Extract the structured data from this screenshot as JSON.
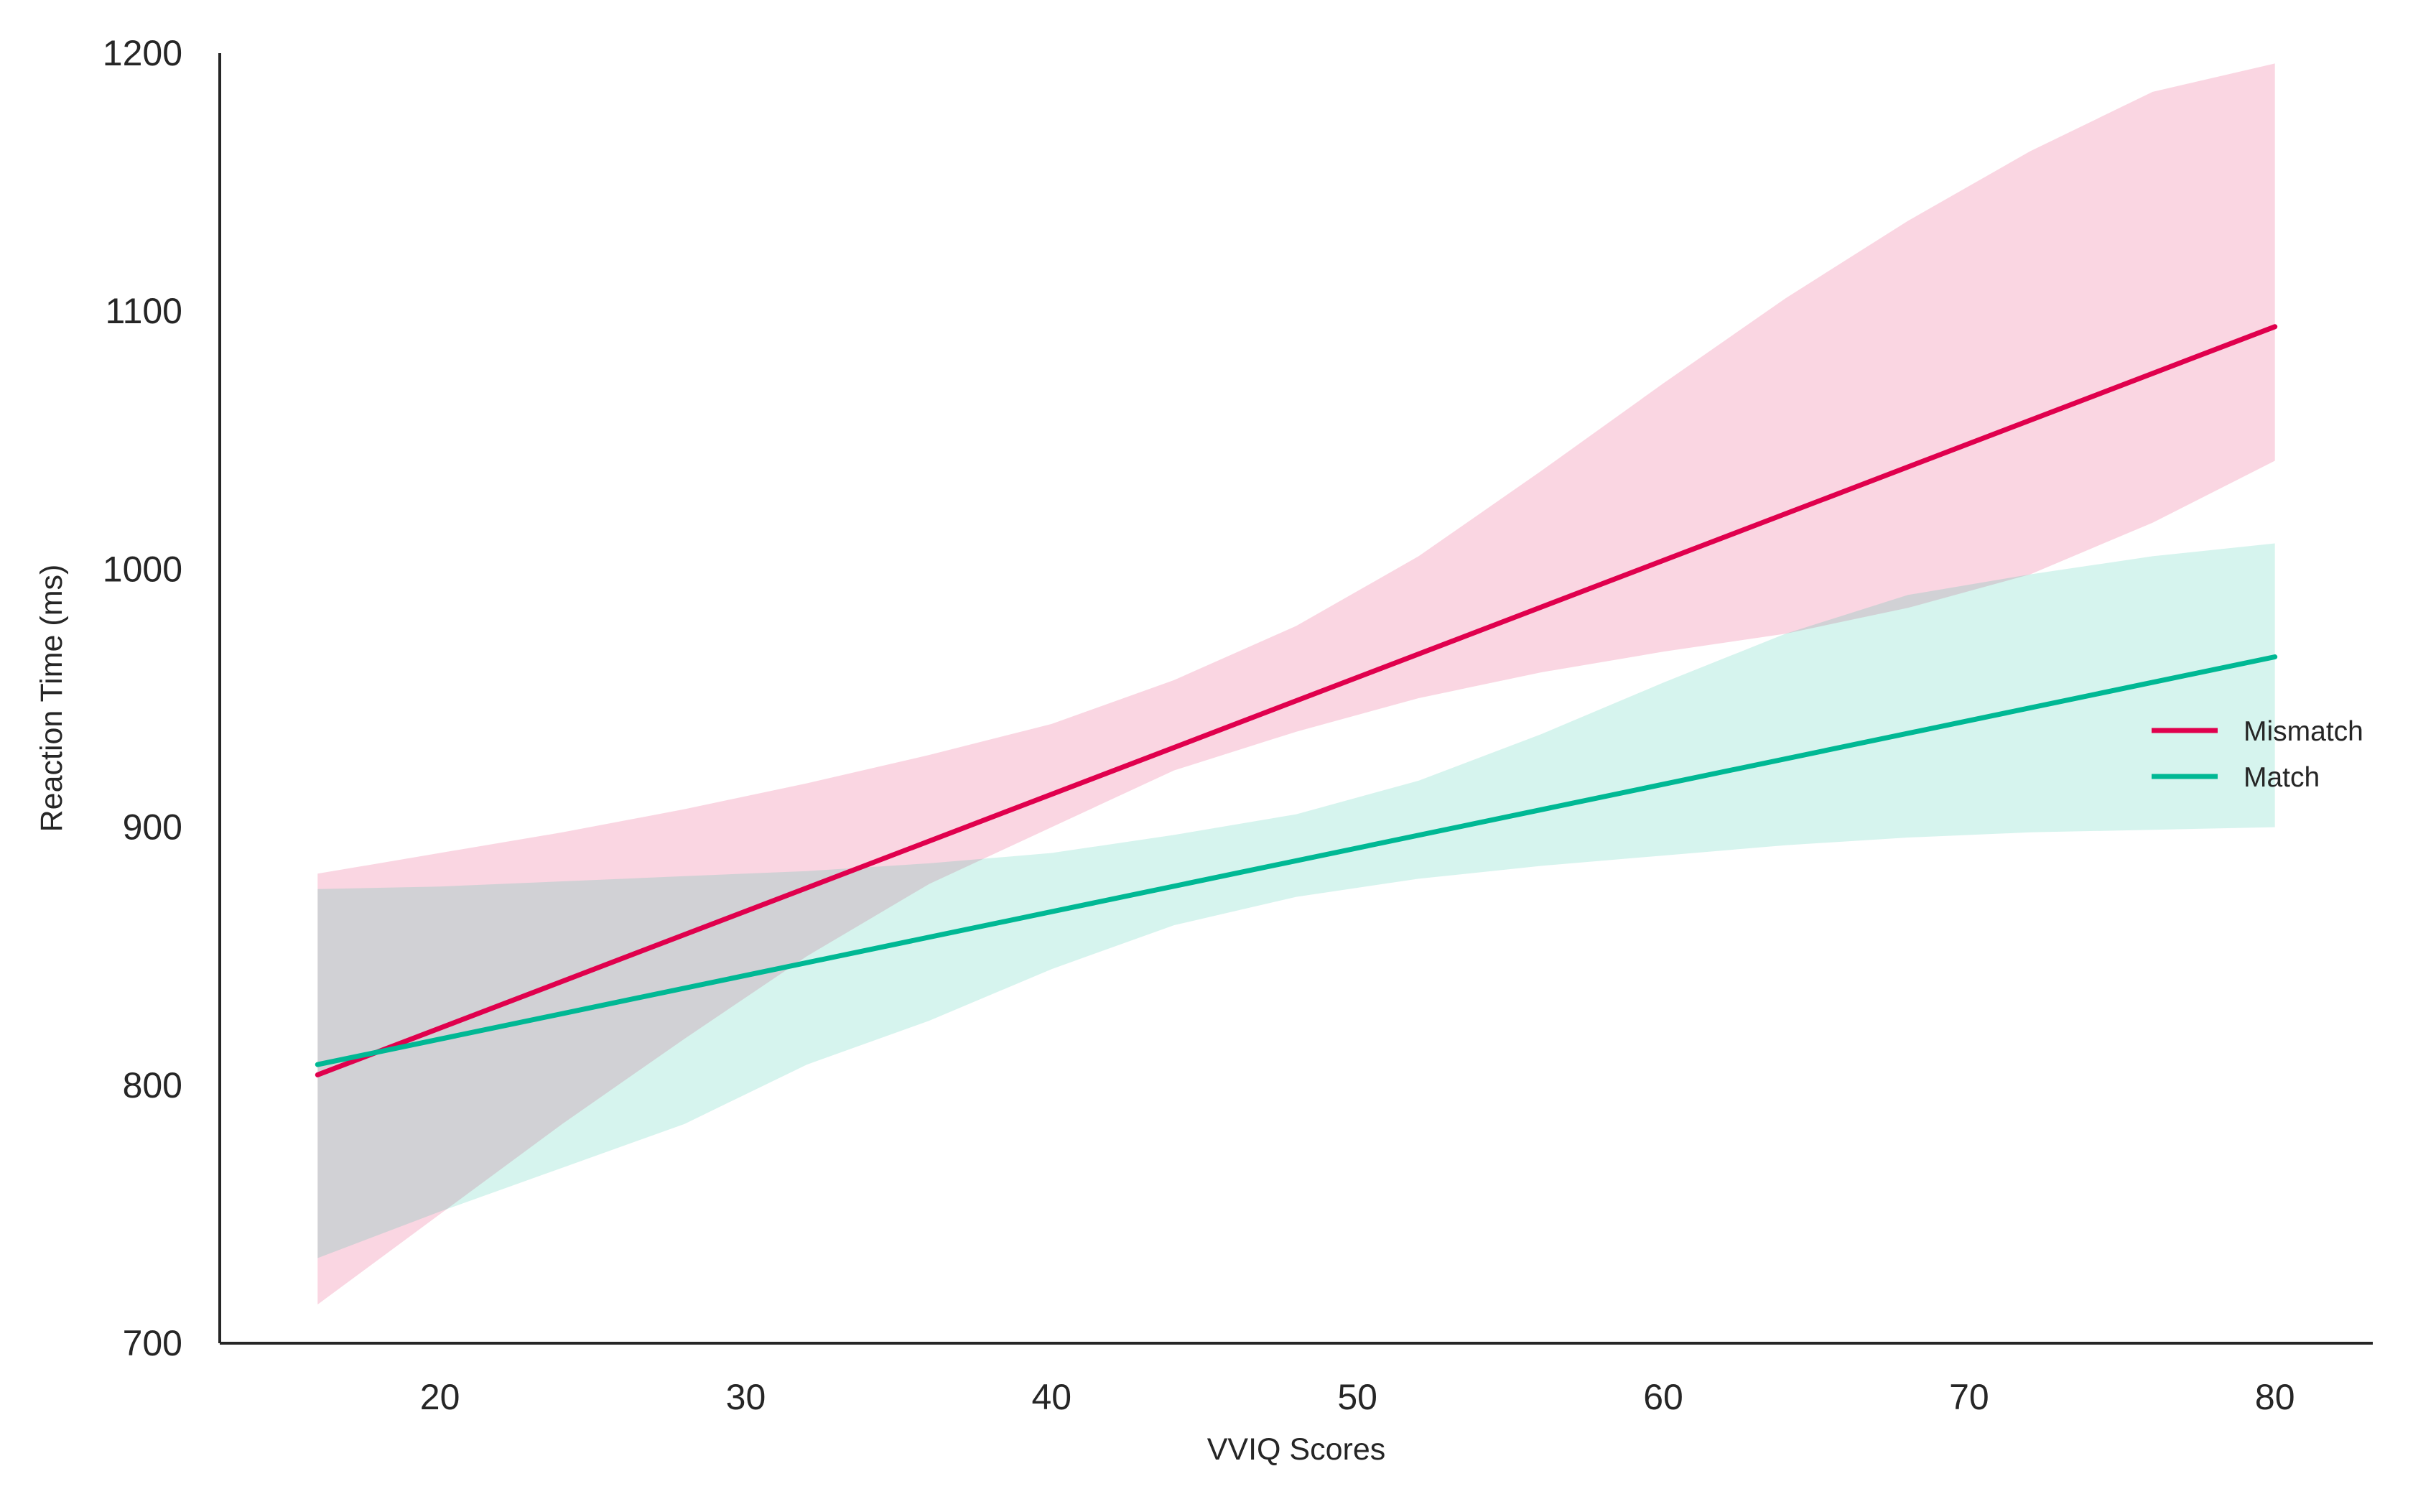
{
  "colors": {
    "mismatch": "#e0004d",
    "match": "#00b894",
    "mismatch_band": "#f6c2d0",
    "match_band": "#c3ede2",
    "axis": "#262626"
  },
  "chart_data": {
    "type": "line",
    "title": "",
    "xlabel": "VVIQ Scores",
    "ylabel": "Reaction Time (ms)",
    "xlim": [
      12.8,
      83.2
    ],
    "ylim": [
      700,
      1200
    ],
    "xticks": [
      20,
      30,
      40,
      50,
      60,
      70,
      80
    ],
    "yticks": [
      700,
      800,
      900,
      1000,
      1100,
      1200
    ],
    "grid": false,
    "legend_position": "right",
    "series": [
      {
        "name": "Mismatch",
        "color_key": "mismatch",
        "x": [
          16,
          80
        ],
        "y": [
          804,
          1094
        ],
        "ci": {
          "x": [
            16,
            20,
            24,
            28,
            32,
            36,
            40,
            44,
            48,
            52,
            56,
            60,
            64,
            68,
            72,
            76,
            80
          ],
          "lower": [
            715,
            750,
            785,
            818,
            850,
            878,
            900,
            922,
            937,
            950,
            960,
            968,
            975,
            985,
            998,
            1018,
            1042
          ],
          "upper": [
            882,
            890,
            898,
            907,
            917,
            928,
            940,
            957,
            978,
            1005,
            1038,
            1072,
            1105,
            1135,
            1162,
            1185,
            1196
          ]
        }
      },
      {
        "name": "Match",
        "color_key": "match",
        "x": [
          16,
          80
        ],
        "y": [
          808,
          966
        ],
        "ci": {
          "x": [
            16,
            20,
            24,
            28,
            32,
            36,
            40,
            44,
            48,
            52,
            56,
            60,
            64,
            68,
            72,
            76,
            80
          ],
          "lower": [
            733,
            751,
            768,
            785,
            808,
            825,
            845,
            862,
            873,
            880,
            885,
            889,
            893,
            896,
            898,
            899,
            900
          ],
          "upper": [
            876,
            877,
            879,
            881,
            883,
            886,
            890,
            897,
            905,
            918,
            936,
            956,
            975,
            990,
            998,
            1005,
            1010
          ]
        }
      }
    ]
  }
}
